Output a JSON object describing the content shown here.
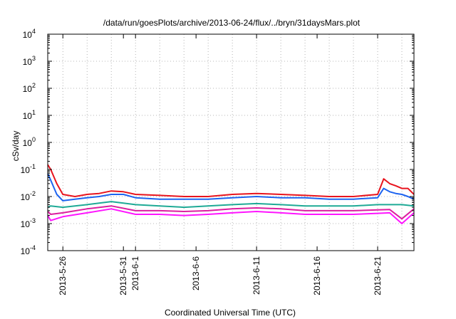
{
  "chart_data": {
    "type": "line",
    "title": "/data/run/goesPlots/archive/2013-06-24/flux/../bryn/31daysMars.plot",
    "xlabel": "Coordinated Universal Time (UTC)",
    "ylabel": "cSv/day",
    "yscale": "log",
    "ylim": [
      0.0001,
      10000
    ],
    "xlim": [
      "2013-05-24T18:00",
      "2013-06-24T00:00"
    ],
    "grid": true,
    "y_ticks": [
      {
        "base": "10",
        "exp": "-4",
        "value": 0.0001
      },
      {
        "base": "10",
        "exp": "-3",
        "value": 0.001
      },
      {
        "base": "10",
        "exp": "-2",
        "value": 0.01
      },
      {
        "base": "10",
        "exp": "-1",
        "value": 0.1
      },
      {
        "base": "10",
        "exp": "0",
        "value": 1
      },
      {
        "base": "10",
        "exp": "1",
        "value": 10
      },
      {
        "base": "10",
        "exp": "2",
        "value": 100
      },
      {
        "base": "10",
        "exp": "3",
        "value": 1000
      },
      {
        "base": "10",
        "exp": "4",
        "value": 10000
      }
    ],
    "x_ticks": [
      {
        "label": "2013-5-26",
        "date": "2013-05-26"
      },
      {
        "label": "2013-5-31",
        "date": "2013-05-31"
      },
      {
        "label": "2013-6-1",
        "date": "2013-06-01"
      },
      {
        "label": "2013-6-6",
        "date": "2013-06-06"
      },
      {
        "label": "2013-6-11",
        "date": "2013-06-11"
      },
      {
        "label": "2013-6-16",
        "date": "2013-06-16"
      },
      {
        "label": "2013-6-21",
        "date": "2013-06-21"
      }
    ],
    "x_grid_dates": [
      "2013-05-26",
      "2013-05-28",
      "2013-05-30",
      "2013-06-01",
      "2013-06-03",
      "2013-06-05",
      "2013-06-07",
      "2013-06-09",
      "2013-06-11",
      "2013-06-13",
      "2013-06-15",
      "2013-06-17",
      "2013-06-19",
      "2013-06-21",
      "2013-06-23"
    ],
    "series": [
      {
        "color": "#e8141e",
        "x": [
          "2013-05-24T18:00",
          "2013-05-25",
          "2013-05-25T12:00",
          "2013-05-26",
          "2013-05-27",
          "2013-05-28",
          "2013-05-29",
          "2013-05-30",
          "2013-05-31",
          "2013-06-01",
          "2013-06-03",
          "2013-06-05",
          "2013-06-07",
          "2013-06-09",
          "2013-06-11",
          "2013-06-13",
          "2013-06-15",
          "2013-06-17",
          "2013-06-19",
          "2013-06-21",
          "2013-06-21T12:00",
          "2013-06-22",
          "2013-06-22T12:00",
          "2013-06-23",
          "2013-06-23T12:00",
          "2013-06-24"
        ],
        "values": [
          0.15,
          0.1,
          0.03,
          0.012,
          0.01,
          0.012,
          0.013,
          0.016,
          0.015,
          0.012,
          0.011,
          0.01,
          0.01,
          0.012,
          0.013,
          0.012,
          0.011,
          0.01,
          0.01,
          0.012,
          0.045,
          0.03,
          0.025,
          0.02,
          0.02,
          0.012
        ]
      },
      {
        "color": "#1e64f0",
        "x": [
          "2013-05-24T18:00",
          "2013-05-25",
          "2013-05-25T12:00",
          "2013-05-26",
          "2013-05-27",
          "2013-05-28",
          "2013-05-29",
          "2013-05-30",
          "2013-05-31",
          "2013-06-01",
          "2013-06-03",
          "2013-06-05",
          "2013-06-07",
          "2013-06-09",
          "2013-06-11",
          "2013-06-13",
          "2013-06-15",
          "2013-06-17",
          "2013-06-19",
          "2013-06-21",
          "2013-06-21T12:00",
          "2013-06-22",
          "2013-06-22T12:00",
          "2013-06-23",
          "2013-06-23T12:00",
          "2013-06-24"
        ],
        "values": [
          0.07,
          0.04,
          0.012,
          0.007,
          0.008,
          0.009,
          0.01,
          0.012,
          0.012,
          0.009,
          0.008,
          0.008,
          0.008,
          0.009,
          0.01,
          0.009,
          0.009,
          0.008,
          0.008,
          0.009,
          0.02,
          0.015,
          0.013,
          0.012,
          0.01,
          0.008
        ]
      },
      {
        "color": "#1eaa96",
        "x": [
          "2013-05-24T18:00",
          "2013-05-25",
          "2013-05-26",
          "2013-05-28",
          "2013-05-30",
          "2013-06-01",
          "2013-06-03",
          "2013-06-05",
          "2013-06-07",
          "2013-06-09",
          "2013-06-11",
          "2013-06-13",
          "2013-06-15",
          "2013-06-17",
          "2013-06-19",
          "2013-06-21",
          "2013-06-22",
          "2013-06-23",
          "2013-06-24"
        ],
        "values": [
          0.004,
          0.0045,
          0.004,
          0.005,
          0.0065,
          0.005,
          0.0045,
          0.004,
          0.0045,
          0.005,
          0.0055,
          0.005,
          0.0045,
          0.0045,
          0.0045,
          0.005,
          0.005,
          0.005,
          0.0045
        ]
      },
      {
        "color": "#dc1ea0",
        "x": [
          "2013-05-24T18:00",
          "2013-05-25",
          "2013-05-26",
          "2013-05-28",
          "2013-05-30",
          "2013-06-01",
          "2013-06-03",
          "2013-06-05",
          "2013-06-07",
          "2013-06-09",
          "2013-06-11",
          "2013-06-13",
          "2013-06-15",
          "2013-06-17",
          "2013-06-19",
          "2013-06-21",
          "2013-06-22",
          "2013-06-23",
          "2013-06-24"
        ],
        "values": [
          0.0028,
          0.0022,
          0.0025,
          0.0035,
          0.0045,
          0.003,
          0.003,
          0.0028,
          0.003,
          0.0035,
          0.0038,
          0.0035,
          0.003,
          0.003,
          0.003,
          0.0032,
          0.0033,
          0.0015,
          0.0035
        ]
      },
      {
        "color": "#ff14ff",
        "x": [
          "2013-05-24T18:00",
          "2013-05-25",
          "2013-05-26",
          "2013-05-28",
          "2013-05-30",
          "2013-06-01",
          "2013-06-03",
          "2013-06-05",
          "2013-06-07",
          "2013-06-09",
          "2013-06-11",
          "2013-06-13",
          "2013-06-15",
          "2013-06-17",
          "2013-06-19",
          "2013-06-21",
          "2013-06-22",
          "2013-06-23",
          "2013-06-24"
        ],
        "values": [
          0.002,
          0.0013,
          0.0018,
          0.0025,
          0.0035,
          0.0022,
          0.0022,
          0.002,
          0.0022,
          0.0025,
          0.0028,
          0.0025,
          0.0022,
          0.0022,
          0.0022,
          0.0024,
          0.0025,
          0.001,
          0.0025
        ]
      }
    ]
  }
}
